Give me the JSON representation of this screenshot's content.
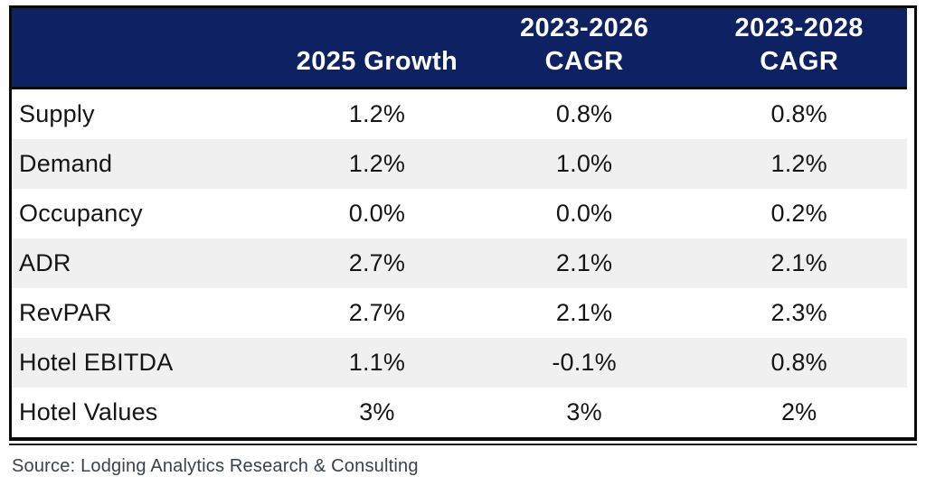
{
  "table": {
    "header": {
      "col1": "",
      "col2": "2025 Growth",
      "col3": [
        "2023-2026",
        "CAGR"
      ],
      "col4": [
        "2023-2028",
        "CAGR"
      ]
    },
    "rows": [
      {
        "label": "Supply",
        "values": [
          "1.2%",
          "0.8%",
          "0.8%"
        ]
      },
      {
        "label": "Demand",
        "values": [
          "1.2%",
          "1.0%",
          "1.2%"
        ]
      },
      {
        "label": "Occupancy",
        "values": [
          "0.0%",
          "0.0%",
          "0.2%"
        ]
      },
      {
        "label": "ADR",
        "values": [
          "2.7%",
          "2.1%",
          "2.1%"
        ]
      },
      {
        "label": "RevPAR",
        "values": [
          "2.7%",
          "2.1%",
          "2.3%"
        ]
      },
      {
        "label": "Hotel EBITDA",
        "values": [
          "1.1%",
          "-0.1%",
          "0.8%"
        ]
      },
      {
        "label": "Hotel Values",
        "values": [
          "3%",
          "3%",
          "2%"
        ]
      }
    ]
  },
  "source": "Source: Lodging Analytics Research & Consulting",
  "colors": {
    "header_bg": "#0d2163",
    "header_text": "#ffffff",
    "stripe": "#f0f0f0",
    "border": "#0a0a0a",
    "body_text": "#151515",
    "source_text": "#39414d"
  },
  "chart_data": {
    "type": "table",
    "title": "",
    "categories": [
      "Supply",
      "Demand",
      "Occupancy",
      "ADR",
      "RevPAR",
      "Hotel EBITDA",
      "Hotel Values"
    ],
    "series": [
      {
        "name": "2025 Growth",
        "values": [
          1.2,
          1.2,
          0.0,
          2.7,
          2.7,
          1.1,
          3
        ]
      },
      {
        "name": "2023-2026 CAGR",
        "values": [
          0.8,
          1.0,
          0.0,
          2.1,
          2.1,
          -0.1,
          3
        ]
      },
      {
        "name": "2023-2028 CAGR",
        "values": [
          0.8,
          1.2,
          0.2,
          2.1,
          2.3,
          0.8,
          2
        ]
      }
    ],
    "value_unit": "%",
    "source": "Source: Lodging Analytics Research & Consulting"
  }
}
